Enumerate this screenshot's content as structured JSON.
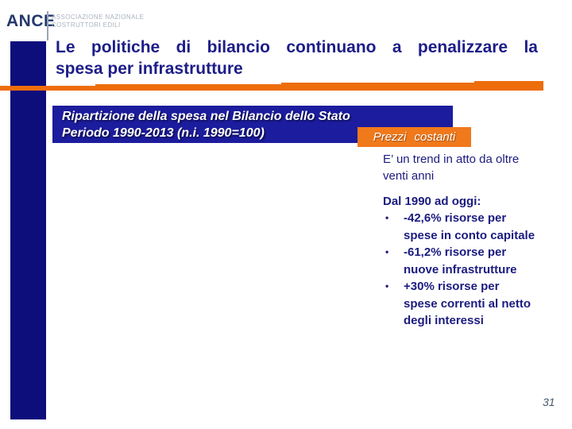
{
  "logo": {
    "name": "ANCE",
    "subtitle": "ASSOCIAZIONE NAZIONALE\nCOSTRUTTORI EDILI"
  },
  "title": {
    "line1": "Le politiche di bilancio continuano a penalizzare la",
    "line2": "spesa per infrastrutture"
  },
  "banner": {
    "line1": "Ripartizione della spesa nel Bilancio dello Stato",
    "line2": "Periodo 1990-2013 (n.i. 1990=100)",
    "tag": "Prezzi costanti"
  },
  "content": {
    "intro": "E’ un trend in atto da oltre\nventi anni",
    "heading": "Dal 1990 ad oggi:",
    "bullet_char": "•",
    "bullets": [
      "-42,6% risorse per\nspese in conto capitale",
      "-61,2% risorse per\nnuove infrastrutture",
      "+30% risorse per\nspese correnti al netto\ndegli interessi"
    ]
  },
  "footer": {
    "page_number": "31"
  },
  "colors": {
    "navy-bar": "#0d0d7c",
    "title-navy": "#1d1d88",
    "banner-blue": "#1c1c9e",
    "orange-rule": "#ed6d0b",
    "orange-tag": "#f0791c",
    "text-navy": "#1b1b80",
    "logo-blue": "#24386e",
    "logo-gray": "#a9b3bf",
    "separator": "#9aa6b4",
    "page-gray": "#44566b"
  }
}
